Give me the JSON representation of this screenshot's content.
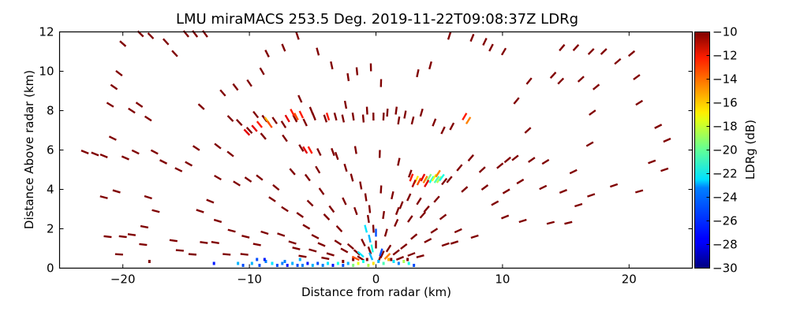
{
  "chart_data": {
    "type": "scatter",
    "title": "LMU miraMACS 253.5 Deg. 2019-11-22T09:08:37Z  LDRg",
    "xlabel": "Distance from radar (km)",
    "ylabel": "Distance Above radar  (km)",
    "xlim": [
      -25,
      25
    ],
    "ylim": [
      0,
      12
    ],
    "xticks": [
      -20,
      -10,
      0,
      10,
      20
    ],
    "xtick_labels": [
      "−20",
      "−10",
      "0",
      "10",
      "20"
    ],
    "yticks": [
      0,
      2,
      4,
      6,
      8,
      10,
      12
    ],
    "ytick_labels": [
      "0",
      "2",
      "4",
      "6",
      "8",
      "10",
      "12"
    ],
    "grid": false,
    "colorbar": {
      "label": "LDRg (dB)",
      "colormap": "jet",
      "range": [
        -30,
        -10
      ],
      "ticks": [
        -10,
        -12,
        -14,
        -16,
        -18,
        -20,
        -22,
        -24,
        -26,
        -28,
        -30
      ],
      "tick_labels": [
        "−10",
        "−12",
        "−14",
        "−16",
        "−18",
        "−20",
        "−22",
        "−24",
        "−26",
        "−28",
        "−30"
      ]
    },
    "points_columns": [
      "x_km",
      "y_km",
      "ldr_db"
    ],
    "points": [
      [
        -23.0,
        5.9,
        -10
      ],
      [
        -22.2,
        5.8,
        -10
      ],
      [
        -21.5,
        5.7,
        -10
      ],
      [
        -20.8,
        6.6,
        -10
      ],
      [
        -21.5,
        3.6,
        -10
      ],
      [
        -20.5,
        3.9,
        -10
      ],
      [
        -19.8,
        5.6,
        -10
      ],
      [
        -19.0,
        5.9,
        -10
      ],
      [
        -21.0,
        8.3,
        -10
      ],
      [
        -20.7,
        9.2,
        -10
      ],
      [
        -20.3,
        9.9,
        -10
      ],
      [
        -19.3,
        8.0,
        -10
      ],
      [
        -18.7,
        8.3,
        -10
      ],
      [
        -18.0,
        7.6,
        -10
      ],
      [
        -20.0,
        11.4,
        -10
      ],
      [
        -18.6,
        11.9,
        -10
      ],
      [
        -17.8,
        11.8,
        -10
      ],
      [
        -16.6,
        11.5,
        -10
      ],
      [
        -15.9,
        10.9,
        -10
      ],
      [
        -15.0,
        11.9,
        -10
      ],
      [
        -14.3,
        11.9,
        -10
      ],
      [
        -13.5,
        11.9,
        -10
      ],
      [
        -17.5,
        5.9,
        -10
      ],
      [
        -16.8,
        5.4,
        -10
      ],
      [
        -15.6,
        5.0,
        -10
      ],
      [
        -14.8,
        5.3,
        -10
      ],
      [
        -14.2,
        6.1,
        -10
      ],
      [
        -12.5,
        6.2,
        -10
      ],
      [
        -11.5,
        5.8,
        -10
      ],
      [
        -13.8,
        8.2,
        -10
      ],
      [
        -12.1,
        8.9,
        -10
      ],
      [
        -11.1,
        9.2,
        -10
      ],
      [
        -10.0,
        9.4,
        -10
      ],
      [
        -9.0,
        10.0,
        -10
      ],
      [
        -8.6,
        10.9,
        -10
      ],
      [
        -7.3,
        11.2,
        -10
      ],
      [
        -6.2,
        11.8,
        -10
      ],
      [
        -4.6,
        11.0,
        -10
      ],
      [
        -3.5,
        10.3,
        -10
      ],
      [
        -2.2,
        9.7,
        -10
      ],
      [
        -1.5,
        10.0,
        -10
      ],
      [
        -0.4,
        10.2,
        -10
      ],
      [
        0.4,
        9.4,
        -10
      ],
      [
        -2.4,
        8.3,
        -10
      ],
      [
        -0.7,
        8.0,
        -10
      ],
      [
        0.6,
        7.7,
        -10
      ],
      [
        1.8,
        7.5,
        -10
      ],
      [
        2.9,
        7.5,
        -10
      ],
      [
        3.6,
        7.9,
        -10
      ],
      [
        4.6,
        7.4,
        -10
      ],
      [
        5.3,
        7.0,
        -10
      ],
      [
        6.0,
        7.2,
        -10
      ],
      [
        3.3,
        9.9,
        -10
      ],
      [
        4.3,
        10.3,
        -10
      ],
      [
        5.8,
        11.8,
        -10
      ],
      [
        7.6,
        11.7,
        -10
      ],
      [
        8.6,
        11.5,
        -10
      ],
      [
        9.1,
        11.2,
        -10
      ],
      [
        10.1,
        11.0,
        -10
      ],
      [
        11.1,
        8.5,
        -10
      ],
      [
        12.1,
        9.5,
        -10
      ],
      [
        12.0,
        7.0,
        -10
      ],
      [
        14.7,
        11.2,
        -10
      ],
      [
        15.8,
        11.2,
        -10
      ],
      [
        17.0,
        11.0,
        -10
      ],
      [
        18.0,
        11.0,
        -10
      ],
      [
        19.1,
        10.5,
        -10
      ],
      [
        20.2,
        10.9,
        -10
      ],
      [
        20.6,
        9.7,
        -10
      ],
      [
        20.8,
        8.4,
        -10
      ],
      [
        22.3,
        7.2,
        -10
      ],
      [
        23.0,
        6.5,
        -10
      ],
      [
        21.8,
        5.4,
        -10
      ],
      [
        22.8,
        5.0,
        -10
      ],
      [
        14.0,
        9.8,
        -10
      ],
      [
        14.6,
        9.5,
        -10
      ],
      [
        16.2,
        9.6,
        -10
      ],
      [
        17.4,
        9.2,
        -10
      ],
      [
        17.1,
        7.9,
        -10
      ],
      [
        16.9,
        6.3,
        -10
      ],
      [
        15.6,
        4.9,
        -10
      ],
      [
        13.4,
        5.4,
        -10
      ],
      [
        12.3,
        5.5,
        -10
      ],
      [
        11.0,
        5.6,
        -10
      ],
      [
        10.4,
        5.5,
        -10
      ],
      [
        9.8,
        5.2,
        -10
      ],
      [
        8.4,
        5.0,
        -10
      ],
      [
        7.5,
        5.6,
        -10
      ],
      [
        6.6,
        5.1,
        -10
      ],
      [
        5.8,
        4.5,
        -10
      ],
      [
        5.4,
        4.4,
        -10
      ],
      [
        7.0,
        4.0,
        -10
      ],
      [
        8.6,
        4.1,
        -10
      ],
      [
        10.3,
        3.9,
        -10
      ],
      [
        11.4,
        4.4,
        -10
      ],
      [
        13.2,
        4.1,
        -10
      ],
      [
        14.8,
        3.9,
        -10
      ],
      [
        17.0,
        3.7,
        -10
      ],
      [
        18.8,
        4.2,
        -10
      ],
      [
        20.8,
        3.9,
        -10
      ],
      [
        10.2,
        2.6,
        -10
      ],
      [
        11.6,
        2.4,
        -10
      ],
      [
        13.8,
        2.3,
        -10
      ],
      [
        15.2,
        2.3,
        -10
      ],
      [
        16.0,
        3.2,
        -10
      ],
      [
        9.4,
        3.3,
        -10
      ],
      [
        7.8,
        1.6,
        -10
      ],
      [
        6.5,
        1.9,
        -10
      ],
      [
        -12.5,
        4.6,
        -10
      ],
      [
        -11.0,
        4.3,
        -10
      ],
      [
        -10.1,
        4.5,
        -10
      ],
      [
        -9.2,
        4.6,
        -10
      ],
      [
        -8.2,
        3.5,
        -10
      ],
      [
        -7.2,
        3.0,
        -10
      ],
      [
        -7.9,
        4.1,
        -10
      ],
      [
        -6.6,
        4.9,
        -10
      ],
      [
        -5.4,
        4.6,
        -10
      ],
      [
        -4.6,
        5.0,
        -10
      ],
      [
        -3.4,
        5.9,
        -10
      ],
      [
        -2.4,
        5.1,
        -10
      ],
      [
        -1.9,
        4.6,
        -10
      ],
      [
        -1.2,
        4.2,
        -10
      ],
      [
        -0.8,
        3.6,
        -10
      ],
      [
        0.4,
        4.0,
        -10
      ],
      [
        1.3,
        3.7,
        -10
      ],
      [
        2.0,
        3.2,
        -10
      ],
      [
        2.6,
        3.6,
        -10
      ],
      [
        3.4,
        3.4,
        -10
      ],
      [
        4.0,
        3.0,
        -10
      ],
      [
        4.8,
        3.5,
        -10
      ],
      [
        -13.1,
        3.4,
        -10
      ],
      [
        -13.9,
        2.9,
        -10
      ],
      [
        -12.5,
        2.4,
        -10
      ],
      [
        -11.4,
        1.9,
        -10
      ],
      [
        -10.3,
        1.6,
        -10
      ],
      [
        -8.8,
        1.8,
        -10
      ],
      [
        -7.5,
        1.7,
        -10
      ],
      [
        -6.6,
        1.3,
        -10
      ],
      [
        -5.5,
        2.1,
        -10
      ],
      [
        -4.8,
        1.6,
        -10
      ],
      [
        -3.9,
        2.6,
        -10
      ],
      [
        -2.9,
        2.0,
        -10
      ],
      [
        -15.5,
        0.9,
        -10
      ],
      [
        -16.0,
        1.4,
        -10
      ],
      [
        -17.4,
        2.9,
        -10
      ],
      [
        -18.0,
        3.6,
        -10
      ],
      [
        -18.3,
        2.1,
        -10
      ],
      [
        -18.4,
        1.2,
        -10
      ],
      [
        -17.9,
        0.3,
        -10
      ],
      [
        -14.5,
        0.7,
        -10
      ],
      [
        -13.6,
        1.3,
        -10
      ],
      [
        -12.7,
        1.3,
        -10
      ],
      [
        -11.8,
        0.7,
        -10
      ],
      [
        -10.4,
        0.7,
        -10
      ],
      [
        -9.4,
        1.2,
        -10
      ],
      [
        -20.0,
        1.6,
        -10
      ],
      [
        -19.3,
        1.7,
        -10
      ],
      [
        -21.2,
        1.6,
        -10
      ],
      [
        -20.3,
        0.7,
        -10
      ],
      [
        -3.0,
        1.3,
        -10
      ],
      [
        -2.5,
        0.9,
        -10
      ],
      [
        -2.0,
        1.1,
        -10
      ],
      [
        -1.5,
        0.8,
        -10
      ],
      [
        -1.0,
        1.3,
        -10
      ],
      [
        -0.5,
        0.9,
        -10
      ],
      [
        0.0,
        1.2,
        -10
      ],
      [
        0.5,
        0.7,
        -10
      ],
      [
        1.0,
        1.0,
        -10
      ],
      [
        1.6,
        0.8,
        -10
      ],
      [
        2.2,
        1.1,
        -10
      ],
      [
        2.8,
        0.7,
        -10
      ],
      [
        3.5,
        0.6,
        -10
      ],
      [
        -1.8,
        0.4,
        -10
      ],
      [
        -1.2,
        0.5,
        -10
      ],
      [
        -0.7,
        0.4,
        -10
      ],
      [
        0.3,
        0.5,
        -10
      ],
      [
        1.2,
        0.4,
        -10
      ],
      [
        1.9,
        0.5,
        -10
      ],
      [
        2.5,
        0.4,
        -10
      ],
      [
        -2.6,
        0.3,
        -10
      ],
      [
        -0.2,
        2.0,
        -10
      ],
      [
        0.8,
        1.8,
        -10
      ],
      [
        -0.6,
        2.5,
        -10
      ],
      [
        1.6,
        2.3,
        -10
      ],
      [
        -3.6,
        0.7,
        -10
      ],
      [
        -4.3,
        1.2,
        -10
      ],
      [
        -5.0,
        0.9,
        -10
      ],
      [
        -5.8,
        0.6,
        -10
      ],
      [
        -6.3,
        1.0,
        -10
      ],
      [
        -4.0,
        0.5,
        -10
      ],
      [
        3.0,
        1.6,
        -10
      ],
      [
        4.1,
        1.4,
        -10
      ],
      [
        4.6,
        1.9,
        -10
      ],
      [
        5.5,
        1.2,
        -10
      ],
      [
        6.2,
        1.3,
        -10
      ],
      [
        -6.0,
        2.7,
        -10
      ],
      [
        -5.2,
        3.3,
        -10
      ],
      [
        -4.3,
        3.9,
        -10
      ],
      [
        -3.5,
        3.0,
        -10
      ],
      [
        -2.5,
        3.4,
        -10
      ],
      [
        -1.6,
        2.9,
        -10
      ],
      [
        -0.5,
        3.0,
        -10
      ],
      [
        0.6,
        2.7,
        -10
      ],
      [
        1.7,
        2.9,
        -10
      ],
      [
        2.7,
        2.5,
        -10
      ],
      [
        3.7,
        2.7,
        -10
      ],
      [
        5.3,
        2.6,
        -10
      ],
      [
        -9.5,
        7.8,
        -10
      ],
      [
        -8.8,
        7.6,
        -10
      ],
      [
        -8.0,
        7.5,
        -10
      ],
      [
        -7.3,
        7.3,
        -10
      ],
      [
        -6.4,
        7.6,
        -10
      ],
      [
        -5.6,
        7.4,
        -10
      ],
      [
        -4.9,
        7.7,
        -10
      ],
      [
        -4.0,
        7.6,
        -10
      ],
      [
        -3.2,
        7.7,
        -10
      ],
      [
        -2.6,
        7.6,
        -10
      ],
      [
        -1.8,
        7.7,
        -10
      ],
      [
        -1.0,
        7.6,
        -10
      ],
      [
        -0.2,
        7.7,
        -10
      ],
      [
        0.9,
        7.9,
        -10
      ],
      [
        1.6,
        8.0,
        -10
      ],
      [
        2.3,
        7.8,
        -10
      ],
      [
        -11.5,
        7.6,
        -10
      ],
      [
        -10.8,
        7.4,
        -10
      ],
      [
        -10.0,
        7.0,
        -10
      ],
      [
        -8.9,
        6.7,
        -10
      ],
      [
        -7.2,
        6.6,
        -10
      ],
      [
        -5.9,
        6.1,
        -10
      ],
      [
        -4.5,
        5.9,
        -10
      ],
      [
        -3.1,
        5.7,
        -10
      ],
      [
        -1.6,
        6.0,
        -10
      ],
      [
        0.3,
        5.8,
        -10
      ],
      [
        1.8,
        5.4,
        -10
      ],
      [
        2.7,
        4.8,
        -10
      ],
      [
        -6.0,
        8.6,
        -10
      ],
      [
        -5.1,
        8.0,
        -10
      ],
      [
        -9.2,
        7.3,
        -13
      ],
      [
        -8.6,
        7.5,
        -16
      ],
      [
        -8.4,
        7.3,
        -14
      ],
      [
        -7.0,
        7.6,
        -12
      ],
      [
        -6.6,
        7.9,
        -13
      ],
      [
        -6.3,
        7.7,
        -14
      ],
      [
        -5.9,
        7.8,
        -13
      ],
      [
        -9.6,
        7.1,
        -12
      ],
      [
        -3.8,
        7.7,
        -13
      ],
      [
        -10.2,
        6.9,
        -12
      ],
      [
        -5.6,
        6.0,
        -12
      ],
      [
        -5.2,
        6.0,
        -13
      ],
      [
        7.0,
        7.7,
        -13
      ],
      [
        7.3,
        7.5,
        -15
      ],
      [
        2.8,
        4.6,
        -13
      ],
      [
        3.2,
        4.5,
        -17
      ],
      [
        3.4,
        4.4,
        -14
      ],
      [
        3.7,
        4.6,
        -12
      ],
      [
        3.9,
        4.5,
        -15
      ],
      [
        4.2,
        4.6,
        -20
      ],
      [
        4.4,
        4.5,
        -22
      ],
      [
        4.6,
        4.6,
        -18
      ],
      [
        4.8,
        4.5,
        -21
      ],
      [
        5.0,
        4.5,
        -19
      ],
      [
        3.0,
        4.3,
        -11
      ],
      [
        4.0,
        4.3,
        -12
      ],
      [
        5.2,
        4.6,
        -22
      ],
      [
        4.9,
        4.8,
        -15
      ],
      [
        -10.5,
        0.1,
        -26
      ],
      [
        -9.8,
        0.2,
        -24
      ],
      [
        -9.2,
        0.1,
        -26
      ],
      [
        -8.7,
        0.3,
        -25
      ],
      [
        -8.2,
        0.2,
        -23
      ],
      [
        -7.8,
        0.1,
        -26
      ],
      [
        -7.4,
        0.2,
        -25
      ],
      [
        -7.0,
        0.1,
        -27
      ],
      [
        -6.6,
        0.2,
        -24
      ],
      [
        -6.2,
        0.1,
        -26
      ],
      [
        -5.8,
        0.1,
        -25
      ],
      [
        -5.4,
        0.2,
        -27
      ],
      [
        -5.0,
        0.1,
        -24
      ],
      [
        -4.6,
        0.2,
        -26
      ],
      [
        -4.2,
        0.1,
        -25
      ],
      [
        -3.8,
        0.2,
        -23
      ],
      [
        -3.4,
        0.1,
        -27
      ],
      [
        -3.0,
        0.2,
        -22
      ],
      [
        -2.6,
        0.1,
        -26
      ],
      [
        -2.2,
        0.2,
        -24
      ],
      [
        -1.8,
        0.1,
        -20
      ],
      [
        -1.4,
        0.2,
        -18
      ],
      [
        -1.0,
        0.3,
        -22
      ],
      [
        -0.6,
        0.1,
        -19
      ],
      [
        -0.2,
        0.2,
        -17
      ],
      [
        0.2,
        0.3,
        -24
      ],
      [
        0.6,
        0.2,
        -21
      ],
      [
        1.0,
        0.4,
        -16
      ],
      [
        1.4,
        0.3,
        -23
      ],
      [
        1.8,
        0.2,
        -25
      ],
      [
        2.2,
        0.3,
        -19
      ],
      [
        2.6,
        0.2,
        -22
      ],
      [
        3.0,
        0.1,
        -26
      ],
      [
        -0.4,
        0.6,
        -24
      ],
      [
        0.4,
        0.8,
        -26
      ],
      [
        -1.2,
        0.7,
        -23
      ],
      [
        -0.5,
        1.5,
        -24
      ],
      [
        0.0,
        1.8,
        -26
      ],
      [
        -0.8,
        2.0,
        -23
      ],
      [
        -0.3,
        1.0,
        -22
      ],
      [
        -1.6,
        0.5,
        -14
      ],
      [
        0.9,
        0.6,
        -15
      ],
      [
        -8.8,
        0.4,
        -27
      ],
      [
        -7.2,
        0.3,
        -25
      ],
      [
        -6.0,
        0.4,
        -24
      ],
      [
        -12.8,
        0.2,
        -27
      ],
      [
        -10.9,
        0.2,
        -24
      ],
      [
        -9.4,
        0.4,
        -26
      ]
    ]
  }
}
